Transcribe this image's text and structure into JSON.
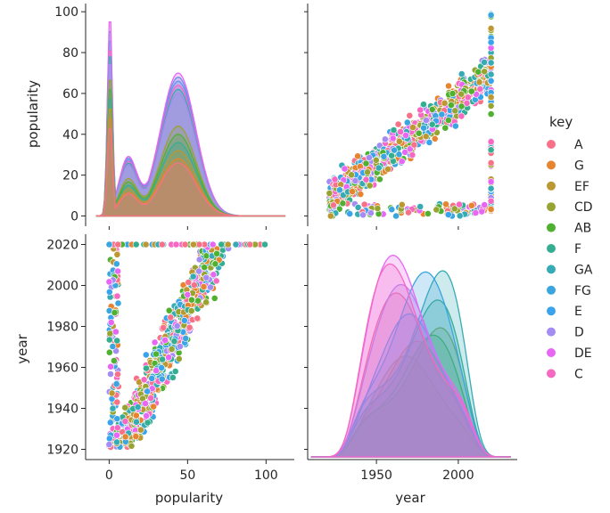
{
  "chart_data": {
    "type": "pairplot",
    "variables": [
      "popularity",
      "year"
    ],
    "hue": "key",
    "legend": {
      "title": "key",
      "placement": "right",
      "entries": [
        {
          "label": "A",
          "color": "#f77189"
        },
        {
          "label": "G",
          "color": "#e6842f"
        },
        {
          "label": "EF",
          "color": "#bb9832"
        },
        {
          "label": "CD",
          "color": "#97a431"
        },
        {
          "label": "AB",
          "color": "#50b131"
        },
        {
          "label": "F",
          "color": "#34ae91"
        },
        {
          "label": "GA",
          "color": "#37abb5"
        },
        {
          "label": "FG",
          "color": "#3aa5df"
        },
        {
          "label": "E",
          "color": "#3ba3ec"
        },
        {
          "label": "D",
          "color": "#a48cf4"
        },
        {
          "label": "DE",
          "color": "#e866f4"
        },
        {
          "label": "C",
          "color": "#f668c2"
        }
      ]
    },
    "panels": [
      {
        "position": "top-left",
        "type": "kde",
        "x": "popularity",
        "xlim": [
          -15,
          118
        ],
        "x_ticks": [],
        "y_ticks": [
          "0",
          "20",
          "40",
          "60",
          "80",
          "100"
        ],
        "ylim": [
          -5,
          104
        ],
        "ylabel": "popularity",
        "description": "Per-key density of popularity: sharp spike near 0 and broad hump near 40-50",
        "series": [
          {
            "key": "FG",
            "spike": 95,
            "hump": 68
          },
          {
            "key": "E",
            "spike": 90,
            "hump": 66
          },
          {
            "key": "DE",
            "spike": 100,
            "hump": 70
          },
          {
            "key": "C",
            "spike": 85,
            "hump": 64
          },
          {
            "key": "GA",
            "spike": 82,
            "hump": 62
          },
          {
            "key": "D",
            "spike": 78,
            "hump": 60
          },
          {
            "key": "CD",
            "spike": 70,
            "hump": 44
          },
          {
            "key": "AB",
            "spike": 65,
            "hump": 40
          },
          {
            "key": "F",
            "spike": 60,
            "hump": 36
          },
          {
            "key": "EF",
            "spike": 55,
            "hump": 32
          },
          {
            "key": "G",
            "spike": 50,
            "hump": 28
          },
          {
            "key": "A",
            "spike": 45,
            "hump": 26
          }
        ]
      },
      {
        "position": "top-right",
        "type": "scatter",
        "x": "year",
        "y": "popularity",
        "xlim": [
          1908,
          2036
        ],
        "ylim": [
          -5,
          104
        ],
        "description": "popularity increases with year; dense band; column of points at year 2020"
      },
      {
        "position": "bottom-left",
        "type": "scatter",
        "x": "popularity",
        "y": "year",
        "xlim": [
          -15,
          118
        ],
        "ylim": [
          1915,
          2025
        ],
        "x_ticks": [
          "0",
          "50",
          "100"
        ],
        "y_ticks": [
          "1920",
          "1940",
          "1960",
          "1980",
          "2000",
          "2020"
        ],
        "xlabel": "popularity",
        "ylabel": "year",
        "description": "year increases with popularity; horizontal row of points at year 2020"
      },
      {
        "position": "bottom-right",
        "type": "kde",
        "x": "year",
        "xlim": [
          1908,
          2036
        ],
        "x_ticks": [
          "1950",
          "2000"
        ],
        "xlabel": "year",
        "description": "Per-key density of year from ~1920 to ~2020, peaks around 1960-1990"
      }
    ]
  }
}
